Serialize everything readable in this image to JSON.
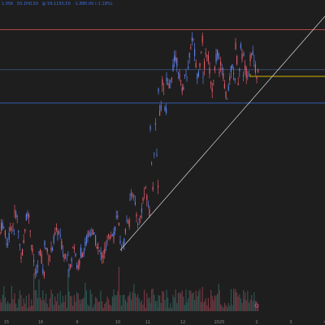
{
  "header": {
    "items": [
      "1.056",
      "50.1H0,50",
      "@ 59.1150,50",
      "-1.880.00 (-1.18%)"
    ],
    "color": "#3b6fe0"
  },
  "colors": {
    "background": "#1e1e1e",
    "up": "#e05a6a",
    "down": "#5b7ee8",
    "volume_up": "#7a3b45",
    "volume_down": "#2f5a55",
    "resistance_line": "#c0504d",
    "mid_line": "#3d5a8a",
    "support_line": "#3b6fe0",
    "target_line": "#d4b400",
    "trendline": "#d8d8d8",
    "marker": "#e05a9a"
  },
  "chart_data": {
    "type": "candlestick",
    "title": "",
    "xlabel": "",
    "ylabel": "",
    "x_ticks": [
      "15",
      "16",
      "9",
      "10",
      "11",
      "12",
      "2025",
      "2",
      "3",
      "4"
    ],
    "legend": "none",
    "grid": false,
    "price_series": [
      {
        "start": 0,
        "end": 18,
        "low": 62,
        "high": 68
      },
      {
        "start": 18,
        "end": 40,
        "low": 58,
        "high": 72
      },
      {
        "start": 40,
        "end": 55,
        "low": 52,
        "high": 60
      },
      {
        "start": 55,
        "end": 85,
        "low": 58,
        "high": 66
      },
      {
        "start": 85,
        "end": 100,
        "low": 54,
        "high": 62
      },
      {
        "start": 100,
        "end": 140,
        "low": 58,
        "high": 66
      },
      {
        "start": 140,
        "end": 160,
        "low": 60,
        "high": 70
      },
      {
        "start": 160,
        "end": 185,
        "low": 68,
        "high": 78
      },
      {
        "start": 185,
        "end": 195,
        "low": 78,
        "high": 98
      },
      {
        "start": 195,
        "end": 205,
        "low": 100,
        "high": 112
      },
      {
        "start": 205,
        "end": 230,
        "low": 108,
        "high": 118
      },
      {
        "start": 230,
        "end": 250,
        "low": 112,
        "high": 124
      },
      {
        "start": 250,
        "end": 270,
        "low": 108,
        "high": 120
      },
      {
        "start": 270,
        "end": 290,
        "low": 105,
        "high": 116
      },
      {
        "start": 290,
        "end": 300,
        "low": 110,
        "high": 122
      },
      {
        "start": 300,
        "end": 318,
        "low": 112,
        "high": 120
      }
    ],
    "levels": {
      "resistance": 126,
      "upper_mid": 114,
      "support": 104,
      "target": 112
    },
    "trendline": {
      "from": [
        148,
        60
      ],
      "to": [
        400,
        130
      ]
    },
    "volume_range": [
      0,
      100
    ]
  }
}
